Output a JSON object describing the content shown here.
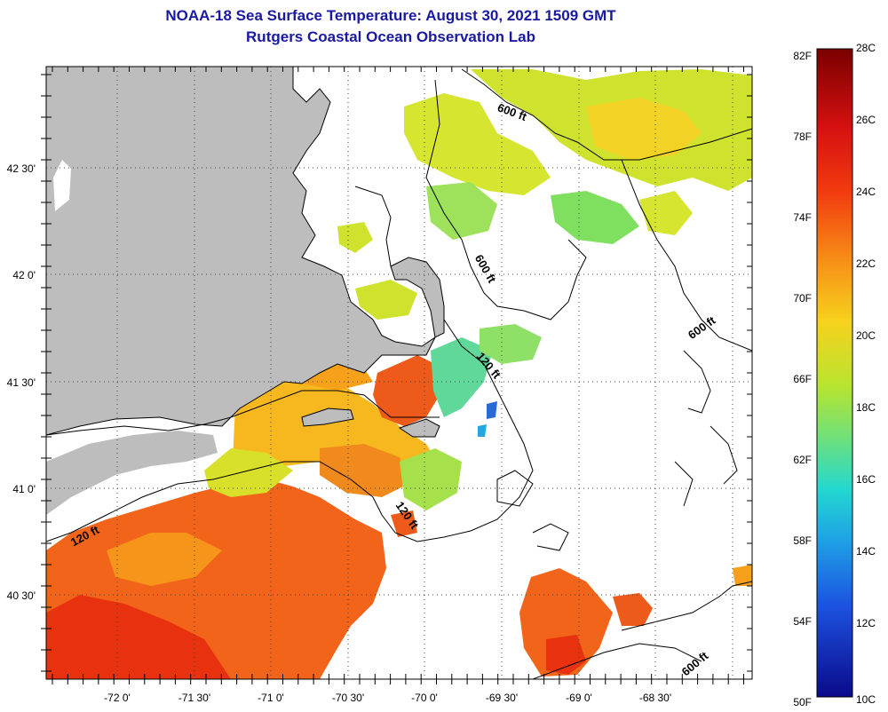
{
  "title": {
    "line1": "NOAA-18 Sea Surface Temperature:  August 30, 2021 1509 GMT",
    "line2": "Rutgers Coastal Ocean Observation Lab"
  },
  "lon_ticks": [
    "-72 0'",
    "-71 30'",
    "-71 0'",
    "-70 30'",
    "-70 0'",
    "-69 30'",
    "-69 0'",
    "-68 30'"
  ],
  "lat_ticks": [
    "42 30'",
    "42 0'",
    "41 30'",
    "41 0'",
    "40 30'"
  ],
  "contour_labels": [
    "600 ft",
    "600 ft",
    "600 ft",
    "600 ft",
    "120 ft",
    "120 ft",
    "120 ft"
  ],
  "legend": {
    "fahrenheit": [
      "82F",
      "78F",
      "74F",
      "70F",
      "66F",
      "62F",
      "58F",
      "54F",
      "50F"
    ],
    "celsius": [
      "28C",
      "26C",
      "24C",
      "22C",
      "20C",
      "18C",
      "16C",
      "14C",
      "12C",
      "10C"
    ]
  },
  "colors": {
    "title": "#1a1aa0",
    "land": "#bdbdbd",
    "warm": "#f26419",
    "hot": "#e8320f",
    "mid": "#f7a11b",
    "cool": "#d7e62a",
    "green": "#7fe060",
    "cyan": "#24d6c8",
    "blue": "#2a6ad8"
  }
}
